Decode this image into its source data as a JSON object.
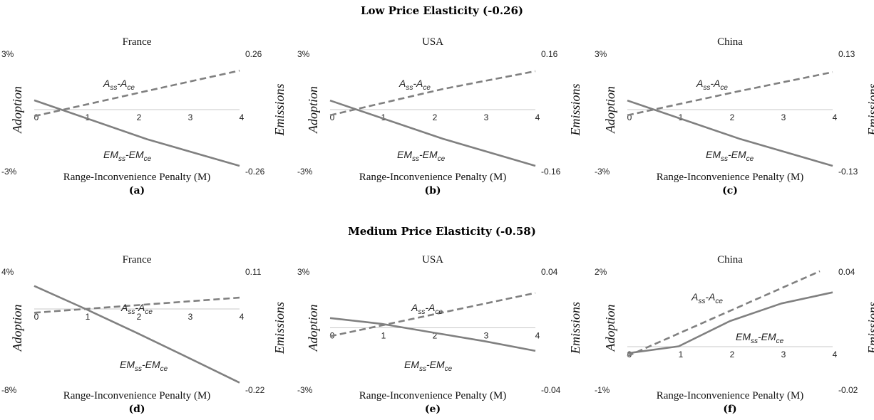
{
  "colors": {
    "series": "#808080",
    "axis": "#c8c8c8",
    "text": "#111111"
  },
  "chart_data": [
    {
      "group": "Low Price Elasticity (-0.26)",
      "letter": "(a)",
      "title": "France",
      "type": "line",
      "xlabel": "Range-Inconvenience Penalty (M)",
      "ylabel_left": "Adoption",
      "ylabel_right": "Emissions",
      "x_ticks": [
        "0",
        "1",
        "2",
        "3",
        "4"
      ],
      "xlim": [
        0,
        4
      ],
      "left_ticks": [
        "3%",
        "-3%"
      ],
      "ylim_left": [
        -3,
        3
      ],
      "right_ticks": [
        "0.26",
        "-0.26"
      ],
      "ylim_right": [
        -0.26,
        0.26
      ],
      "series": [
        {
          "label_main": "A",
          "label_sub1": "ss",
          "label_mid": "-A",
          "label_sub2": "ce",
          "axis": "left",
          "style": "dashed",
          "x": [
            0,
            2.2,
            4
          ],
          "y": [
            -0.35,
            1.0,
            2.08
          ]
        },
        {
          "label_main": "EM",
          "label_sub1": "ss",
          "label_mid": "-EM",
          "label_sub2": "ce",
          "axis": "right",
          "style": "solid",
          "x": [
            0,
            2.2,
            4
          ],
          "y": [
            0.043,
            -0.137,
            -0.26
          ]
        }
      ]
    },
    {
      "group": "Low Price Elasticity (-0.26)",
      "letter": "(b)",
      "title": "USA",
      "type": "line",
      "xlabel": "Range-Inconvenience Penalty (M)",
      "ylabel_left": "Adoption",
      "ylabel_right": "Emissions",
      "x_ticks": [
        "0",
        "1",
        "2",
        "3",
        "4"
      ],
      "xlim": [
        0,
        4
      ],
      "left_ticks": [
        "3%",
        "-3%"
      ],
      "ylim_left": [
        -3,
        3
      ],
      "right_ticks": [
        "0.16",
        "-0.16"
      ],
      "ylim_right": [
        -0.16,
        0.16
      ],
      "series": [
        {
          "label_main": "A",
          "label_sub1": "ss",
          "label_mid": "-A",
          "label_sub2": "ce",
          "axis": "left",
          "style": "dashed",
          "x": [
            0,
            2.2,
            4
          ],
          "y": [
            -0.3,
            1.1,
            2.05
          ]
        },
        {
          "label_main": "EM",
          "label_sub1": "ss",
          "label_mid": "-EM",
          "label_sub2": "ce",
          "axis": "right",
          "style": "solid",
          "x": [
            0,
            2.2,
            4
          ],
          "y": [
            0.026,
            -0.083,
            -0.16
          ]
        }
      ]
    },
    {
      "group": "Low Price Elasticity (-0.26)",
      "letter": "(c)",
      "title": "China",
      "type": "line",
      "xlabel": "Range-Inconvenience Penalty (M)",
      "ylabel_left": "Adoption",
      "ylabel_right": "Emissions",
      "x_ticks": [
        "0",
        "1",
        "2",
        "3",
        "4"
      ],
      "xlim": [
        0,
        4
      ],
      "left_ticks": [
        "3%",
        "-3%"
      ],
      "ylim_left": [
        -3,
        3
      ],
      "right_ticks": [
        "0.13",
        "-0.13"
      ],
      "ylim_right": [
        -0.13,
        0.13
      ],
      "series": [
        {
          "label_main": "A",
          "label_sub1": "ss",
          "label_mid": "-A",
          "label_sub2": "ce",
          "axis": "left",
          "style": "dashed",
          "x": [
            0,
            2.2,
            4
          ],
          "y": [
            -0.3,
            1.0,
            2.0
          ]
        },
        {
          "label_main": "EM",
          "label_sub1": "ss",
          "label_mid": "-EM",
          "label_sub2": "ce",
          "axis": "right",
          "style": "solid",
          "x": [
            0,
            2.2,
            4
          ],
          "y": [
            0.021,
            -0.068,
            -0.13
          ]
        }
      ]
    },
    {
      "group": "Medium Price Elasticity (-0.58)",
      "letter": "(d)",
      "title": "France",
      "type": "line",
      "xlabel": "Range-Inconvenience Penalty (M)",
      "ylabel_left": "Adoption",
      "ylabel_right": "Emissions",
      "x_ticks": [
        "0",
        "1",
        "2",
        "3",
        "4"
      ],
      "xlim": [
        0,
        4
      ],
      "left_ticks": [
        "4%",
        "-8%"
      ],
      "ylim_left": [
        -8,
        4
      ],
      "right_ticks": [
        "0.11",
        "-0.22"
      ],
      "ylim_right": [
        -0.22,
        0.11
      ],
      "series": [
        {
          "label_main": "A",
          "label_sub1": "ss",
          "label_mid": "-A",
          "label_sub2": "ce",
          "axis": "left",
          "style": "dashed",
          "x": [
            0,
            4
          ],
          "y": [
            -0.4,
            1.2
          ]
        },
        {
          "label_main": "EM",
          "label_sub1": "ss",
          "label_mid": "-EM",
          "label_sub2": "ce",
          "axis": "right",
          "style": "solid",
          "x": [
            0,
            1,
            2,
            3,
            4
          ],
          "y": [
            0.067,
            0.0,
            -0.07,
            -0.142,
            -0.215
          ]
        }
      ]
    },
    {
      "group": "Medium Price Elasticity (-0.58)",
      "letter": "(e)",
      "title": "USA",
      "type": "line",
      "xlabel": "Range-Inconvenience Penalty (M)",
      "ylabel_left": "Adoption",
      "ylabel_right": "Emissions",
      "x_ticks": [
        "0",
        "1",
        "2",
        "3",
        "4"
      ],
      "xlim": [
        0,
        4
      ],
      "left_ticks": [
        "3%",
        "-3%"
      ],
      "ylim_left": [
        -3,
        3
      ],
      "right_ticks": [
        "0.04",
        "-0.04"
      ],
      "ylim_right": [
        -0.04,
        0.04
      ],
      "series": [
        {
          "label_main": "A",
          "label_sub1": "ss",
          "label_mid": "-A",
          "label_sub2": "ce",
          "axis": "left",
          "style": "dashed",
          "x": [
            0,
            4
          ],
          "y": [
            -0.45,
            1.85
          ]
        },
        {
          "label_main": "EM",
          "label_sub1": "ss",
          "label_mid": "-EM",
          "label_sub2": "ce",
          "axis": "right",
          "style": "solid",
          "x": [
            0,
            1,
            2,
            3,
            4
          ],
          "y": [
            0.0069,
            0.0028,
            -0.0033,
            -0.0094,
            -0.0163
          ]
        }
      ]
    },
    {
      "group": "Medium Price Elasticity (-0.58)",
      "letter": "(f)",
      "title": "China",
      "type": "line",
      "xlabel": "Range-Inconvenience Penalty (M)",
      "ylabel_left": "Adoption",
      "ylabel_right": "Emissions",
      "x_ticks": [
        "0",
        "1",
        "2",
        "3",
        "4"
      ],
      "xlim": [
        0,
        4
      ],
      "left_ticks": [
        "2%",
        "-1%"
      ],
      "ylim_left": [
        -1,
        2
      ],
      "right_ticks": [
        "0.04",
        "-0.02"
      ],
      "ylim_right": [
        -0.02,
        0.04
      ],
      "series": [
        {
          "label_main": "A",
          "label_sub1": "ss",
          "label_mid": "-A",
          "label_sub2": "ce",
          "axis": "left",
          "style": "dashed",
          "x": [
            0,
            3.75
          ],
          "y": [
            -0.25,
            2.0
          ]
        },
        {
          "label_main": "EM",
          "label_sub1": "ss",
          "label_mid": "-EM",
          "label_sub2": "ce",
          "axis": "right",
          "style": "solid",
          "x": [
            0,
            1,
            2,
            3,
            4
          ],
          "y": [
            -0.0035,
            0.0002,
            0.0136,
            0.0229,
            0.0288
          ]
        }
      ]
    }
  ]
}
